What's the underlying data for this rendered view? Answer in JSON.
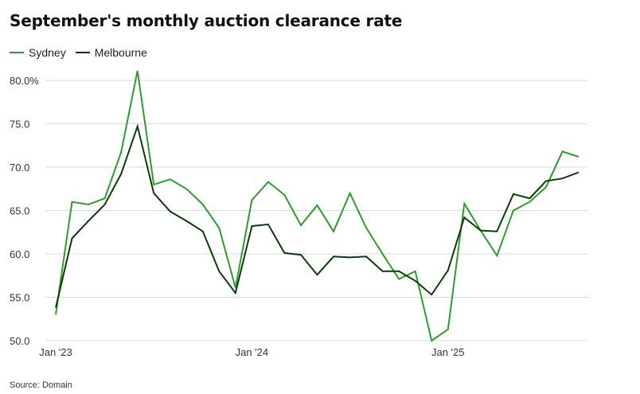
{
  "title": "September's monthly auction clearance rate",
  "source": "Source: Domain",
  "colors": {
    "sydney": "#2f9a2f",
    "melbourne": "#0b3a0b",
    "grid": "#d9d9d9",
    "axis_text": "#333333"
  },
  "chart_data": {
    "type": "line",
    "title": "September's monthly auction clearance rate",
    "xlabel": "",
    "ylabel": "",
    "ylim": [
      50,
      80
    ],
    "yticks": [
      50,
      55,
      60,
      65,
      70,
      75,
      80
    ],
    "ytick_labels": [
      "50.0",
      "55.0",
      "60.0",
      "65.0",
      "70.0",
      "75.0",
      "80.0%"
    ],
    "x": [
      "2023-01",
      "2023-02",
      "2023-03",
      "2023-04",
      "2023-05",
      "2023-06",
      "2023-07",
      "2023-08",
      "2023-09",
      "2023-10",
      "2023-11",
      "2023-12",
      "2024-01",
      "2024-02",
      "2024-03",
      "2024-04",
      "2024-05",
      "2024-06",
      "2024-07",
      "2024-08",
      "2024-09",
      "2024-10",
      "2024-11",
      "2024-12",
      "2025-01",
      "2025-02",
      "2025-03",
      "2025-04",
      "2025-05",
      "2025-06",
      "2025-07",
      "2025-08",
      "2025-09"
    ],
    "xtick_labels": [
      {
        "label": "Jan '23",
        "x": "2023-01"
      },
      {
        "label": "Jan '24",
        "x": "2024-01"
      },
      {
        "label": "Jan '25",
        "x": "2025-01"
      }
    ],
    "grid": true,
    "legend_position": "top-left",
    "series": [
      {
        "name": "Sydney",
        "color": "#2f9a2f",
        "values": [
          53.0,
          66.0,
          65.7,
          66.4,
          71.7,
          81.1,
          68.0,
          68.6,
          67.5,
          65.7,
          63.0,
          56.1,
          66.2,
          68.3,
          66.8,
          63.3,
          65.6,
          62.6,
          67.0,
          63.0,
          60.0,
          57.1,
          58.0,
          50.0,
          51.3,
          65.8,
          62.7,
          59.8,
          65.0,
          66.0,
          67.7,
          71.8,
          71.2
        ]
      },
      {
        "name": "Melbourne",
        "color": "#0b3a0b",
        "values": [
          53.8,
          61.8,
          63.8,
          65.7,
          69.2,
          74.7,
          67.0,
          64.9,
          63.8,
          62.6,
          58.0,
          55.5,
          63.2,
          63.4,
          60.1,
          59.9,
          57.6,
          59.7,
          59.6,
          59.7,
          58.0,
          58.0,
          56.9,
          55.3,
          58.1,
          64.2,
          62.7,
          62.6,
          66.9,
          66.4,
          68.4,
          68.7,
          69.4
        ]
      }
    ]
  }
}
